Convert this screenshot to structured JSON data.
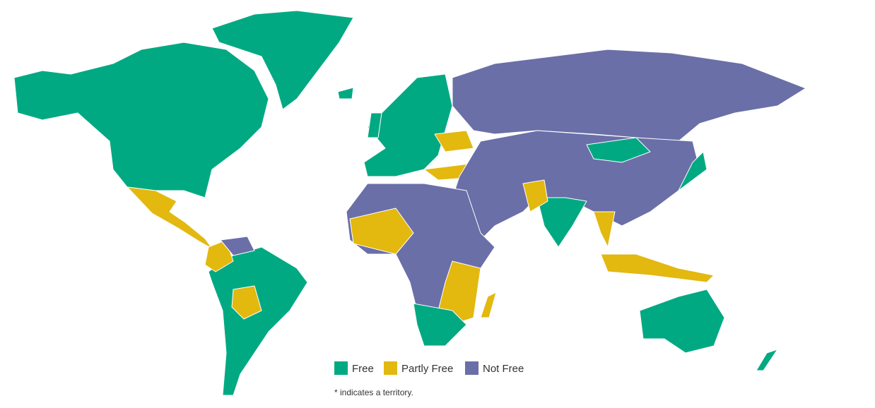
{
  "legend": {
    "items": [
      {
        "label": "Free",
        "color": "#00a982"
      },
      {
        "label": "Partly Free",
        "color": "#e3b80f"
      },
      {
        "label": "Not Free",
        "color": "#6a6fa8"
      }
    ]
  },
  "note": "* indicates a territory."
}
